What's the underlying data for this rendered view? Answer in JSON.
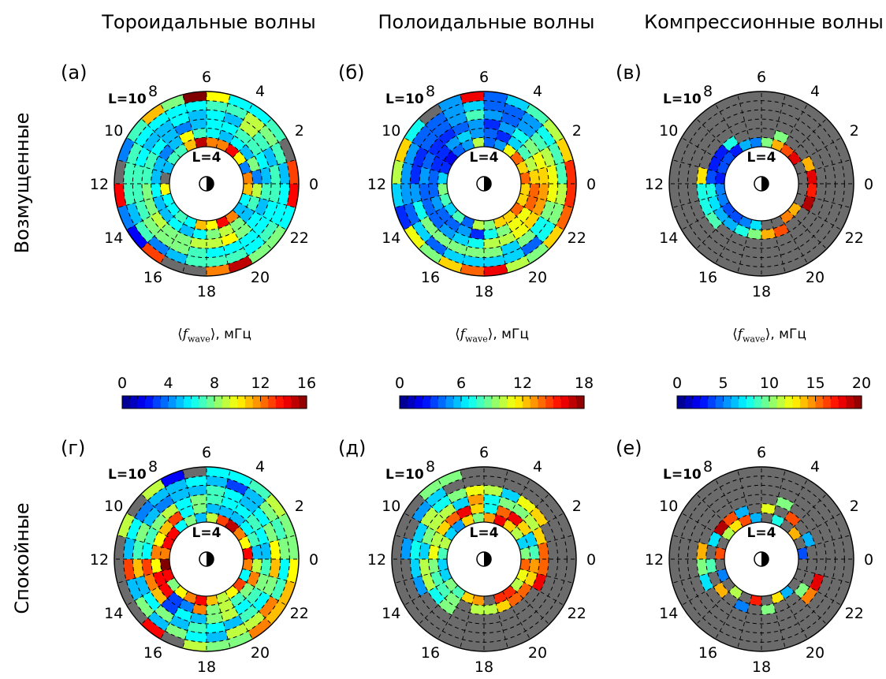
{
  "column_titles": [
    "Тороидальные волны",
    "Полоидальные волны",
    "Компрессионные волны"
  ],
  "row_titles": [
    "Возмущенные",
    "Спокойные"
  ],
  "colorbar_label": {
    "prefix": "⟨",
    "var": "f",
    "sub": "wave",
    "suffix": "⟩, мГц"
  },
  "colorbars": [
    {
      "ticks": [
        0,
        4,
        8,
        12,
        16
      ],
      "vmin": 0,
      "vmax": 16
    },
    {
      "ticks": [
        0,
        6,
        12,
        18
      ],
      "vmin": 0,
      "vmax": 18
    },
    {
      "ticks": [
        0,
        5,
        10,
        15,
        20
      ],
      "vmin": 0,
      "vmax": 20
    }
  ],
  "mlt_labels": [
    "0",
    "2",
    "4",
    "6",
    "8",
    "10",
    "12",
    "14",
    "16",
    "18",
    "20",
    "22"
  ],
  "l_outer_label": "L=10",
  "l_inner_label": "L=4",
  "colors": {
    "no_data": "#6b6b6b",
    "colormap": "jet"
  },
  "chart_data": [
    {
      "type": "heatmap",
      "panel": "(а)",
      "projection": "polar",
      "r_axis": "L",
      "r_range": [
        4,
        10
      ],
      "theta_axis": "MLT (hours)",
      "vmax": 16,
      "grid": "L=4..10 x 24 MLT bins (values read as f, mГц)",
      "values": [
        [
          12,
          4,
          10,
          14,
          12,
          12,
          15,
          11,
          7,
          7,
          5,
          null,
          10,
          6,
          6,
          7,
          6,
          11,
          10,
          14,
          12,
          5,
          6,
          11
        ],
        [
          4,
          8,
          5,
          6,
          5,
          6,
          7,
          10,
          5,
          4,
          5,
          5,
          6,
          5,
          5,
          6,
          5,
          6,
          8,
          9,
          8,
          5,
          7,
          9
        ],
        [
          5,
          6,
          7,
          7,
          6,
          6,
          5,
          4,
          5,
          6,
          7,
          7,
          8,
          8,
          9,
          8,
          8,
          9,
          9,
          10,
          8,
          6,
          5,
          7
        ],
        [
          7,
          5,
          7,
          9,
          5,
          6,
          5,
          6,
          5,
          5,
          6,
          7,
          7,
          7,
          8,
          8,
          8,
          7,
          6,
          6,
          6,
          6,
          6,
          7
        ],
        [
          5,
          7,
          8,
          9,
          7,
          7,
          6,
          6,
          6,
          6,
          7,
          7,
          7,
          5,
          7,
          4,
          5,
          7,
          7,
          7,
          6,
          7,
          6,
          6
        ],
        [
          13,
          null,
          7,
          6,
          6,
          10,
          16,
          8,
          11,
          7,
          4,
          null,
          14,
          4,
          2,
          13,
          null,
          null,
          12,
          15,
          8,
          8,
          6,
          14
        ]
      ]
    },
    {
      "type": "heatmap",
      "panel": "(б)",
      "projection": "polar",
      "r_axis": "L",
      "r_range": [
        4,
        10
      ],
      "theta_axis": "MLT (hours)",
      "vmax": 18,
      "grid": "L=4..10 x 24 MLT bins",
      "values": [
        [
          14,
          12,
          14,
          11,
          5,
          4,
          10,
          5,
          4,
          2,
          3,
          6,
          9,
          8,
          6,
          8,
          4,
          10,
          9,
          12,
          12,
          14,
          12,
          12
        ],
        [
          12,
          10,
          8,
          6,
          3,
          4,
          5,
          6,
          5,
          3,
          3,
          4,
          4,
          5,
          4,
          4,
          5,
          3,
          7,
          9,
          11,
          11,
          14,
          14
        ],
        [
          12,
          11,
          9,
          7,
          5,
          3,
          5,
          4,
          3,
          3,
          4,
          5,
          4,
          4,
          4,
          5,
          6,
          7,
          10,
          10,
          11,
          12,
          13,
          13
        ],
        [
          11,
          10,
          8,
          5,
          4,
          5,
          8,
          5,
          4,
          4,
          3,
          3,
          5,
          7,
          9,
          9,
          9,
          9,
          9,
          6,
          9,
          7,
          9,
          11
        ],
        [
          8,
          8,
          7,
          5,
          4,
          4,
          6,
          5,
          4,
          4,
          5,
          5,
          5,
          4,
          6,
          4,
          6,
          6,
          6,
          6,
          4,
          7,
          9,
          10
        ],
        [
          15,
          12,
          10,
          8,
          6,
          4,
          16,
          5,
          null,
          7,
          12,
          10,
          6,
          3,
          11,
          9,
          12,
          14,
          16,
          10,
          9,
          12,
          14,
          15
        ]
      ]
    },
    {
      "type": "heatmap",
      "panel": "(в)",
      "projection": "polar",
      "r_axis": "L",
      "r_range": [
        4,
        10
      ],
      "theta_axis": "MLT (hours)",
      "vmax": 20,
      "grid": "L=4..10 x 24 MLT bins",
      "values": [
        [
          null,
          null,
          18,
          16,
          14,
          10,
          5,
          6,
          3,
          4,
          4,
          3,
          5,
          5,
          4,
          4,
          5,
          7,
          null,
          null,
          15,
          14,
          null,
          null
        ],
        [
          18,
          14,
          null,
          null,
          10,
          null,
          null,
          null,
          8,
          3,
          3,
          4,
          8,
          7,
          6,
          6,
          8,
          10,
          14,
          16,
          null,
          null,
          19,
          17
        ],
        [
          null,
          null,
          null,
          null,
          null,
          null,
          null,
          null,
          null,
          null,
          null,
          13,
          8,
          8,
          9,
          null,
          null,
          null,
          null,
          null,
          null,
          null,
          null,
          null
        ],
        [
          null,
          null,
          null,
          null,
          null,
          null,
          null,
          null,
          null,
          null,
          null,
          null,
          null,
          null,
          null,
          null,
          null,
          null,
          null,
          null,
          null,
          null,
          null,
          null
        ],
        [
          null,
          null,
          null,
          null,
          null,
          null,
          null,
          null,
          null,
          null,
          null,
          null,
          null,
          null,
          null,
          null,
          null,
          null,
          null,
          null,
          null,
          null,
          null,
          null
        ],
        [
          null,
          null,
          null,
          null,
          null,
          null,
          null,
          null,
          null,
          null,
          null,
          null,
          null,
          null,
          null,
          null,
          null,
          null,
          null,
          null,
          null,
          null,
          null,
          null
        ]
      ]
    },
    {
      "type": "heatmap",
      "panel": "(г)",
      "projection": "polar",
      "r_axis": "L",
      "r_range": [
        4,
        10
      ],
      "theta_axis": "MLT (hours)",
      "vmax": 16,
      "grid": "L=4..10 x 24 MLT bins",
      "values": [
        [
          14,
          10,
          12,
          15,
          13,
          9,
          5,
          8,
          6,
          14,
          14,
          12,
          16,
          14,
          8,
          10,
          12,
          14,
          11,
          9,
          10,
          13,
          6,
          12
        ],
        [
          5,
          7,
          6,
          5,
          5,
          5,
          8,
          6,
          13,
          11,
          10,
          12,
          10,
          14,
          14,
          3,
          4,
          12,
          8,
          9,
          7,
          8,
          12,
          9
        ],
        [
          5,
          6,
          7,
          6,
          6,
          7,
          8,
          6,
          9,
          8,
          7,
          6,
          13,
          12,
          11,
          3,
          6,
          5,
          8,
          9,
          6,
          7,
          8,
          7
        ],
        [
          10,
          8,
          6,
          5,
          6,
          7,
          5,
          5,
          4,
          5,
          8,
          7,
          11,
          5,
          6,
          8,
          5,
          7,
          6,
          5,
          7,
          6,
          8,
          11
        ],
        [
          8,
          7,
          8,
          5,
          3,
          5,
          6,
          5,
          5,
          4,
          6,
          5,
          13,
          5,
          8,
          5,
          8,
          6,
          5,
          9,
          9,
          12,
          7,
          6
        ],
        [
          8,
          8,
          9,
          7,
          6,
          6,
          null,
          2,
          9,
          null,
          9,
          null,
          null,
          null,
          null,
          14,
          null,
          9,
          8,
          8,
          12,
          11,
          11,
          10
        ]
      ]
    },
    {
      "type": "heatmap",
      "panel": "(д)",
      "projection": "polar",
      "r_axis": "L",
      "r_range": [
        4,
        10
      ],
      "theta_axis": "MLT (hours)",
      "vmax": 18,
      "grid": "L=4..10 x 24 MLT bins",
      "values": [
        [
          9,
          6,
          10,
          12,
          16,
          13,
          9,
          12,
          5,
          6,
          10,
          8,
          6,
          6,
          9,
          8,
          12,
          13,
          null,
          15,
          15,
          10,
          11,
          14
        ],
        [
          8,
          6,
          12,
          16,
          14,
          7,
          12,
          16,
          14,
          12,
          10,
          11,
          9,
          8,
          8,
          9,
          null,
          10,
          10,
          12,
          14,
          14,
          12,
          13
        ],
        [
          14,
          12,
          10,
          9,
          9,
          7,
          13,
          6,
          10,
          10,
          9,
          6,
          10,
          10,
          7,
          9,
          null,
          null,
          null,
          null,
          null,
          null,
          16,
          14
        ],
        [
          null,
          null,
          12,
          11,
          6,
          10,
          11,
          9,
          7,
          10,
          6,
          7,
          6,
          5,
          null,
          null,
          null,
          null,
          null,
          null,
          null,
          null,
          null,
          null
        ],
        [
          null,
          null,
          null,
          null,
          null,
          null,
          null,
          null,
          6,
          5,
          null,
          5,
          null,
          null,
          null,
          null,
          null,
          null,
          null,
          null,
          null,
          null,
          null,
          null
        ],
        [
          null,
          null,
          null,
          null,
          null,
          null,
          null,
          9,
          9,
          null,
          null,
          null,
          null,
          null,
          null,
          null,
          null,
          null,
          null,
          null,
          null,
          null,
          null,
          null
        ]
      ]
    },
    {
      "type": "heatmap",
      "panel": "(е)",
      "projection": "polar",
      "r_axis": "L",
      "r_range": [
        4,
        10
      ],
      "theta_axis": "MLT (hours)",
      "vmax": 20,
      "grid": "L=4..10 x 24 MLT bins",
      "values": [
        [
          4,
          null,
          14,
          null,
          8,
          null,
          6,
          16,
          13,
          11,
          null,
          16,
          null,
          5,
          null,
          11,
          null,
          17,
          null,
          13,
          6,
          null,
          null,
          null
        ],
        [
          null,
          6,
          null,
          16,
          null,
          12,
          null,
          6,
          16,
          19,
          7,
          null,
          9,
          null,
          14,
          null,
          5,
          null,
          10,
          null,
          null,
          10,
          null,
          null
        ],
        [
          null,
          null,
          null,
          null,
          10,
          null,
          null,
          null,
          null,
          null,
          null,
          14,
          10,
          7,
          null,
          null,
          null,
          null,
          null,
          null,
          null,
          15,
          18,
          null
        ],
        [
          null,
          null,
          null,
          null,
          null,
          null,
          null,
          null,
          null,
          null,
          null,
          null,
          null,
          null,
          null,
          null,
          null,
          null,
          null,
          null,
          null,
          null,
          null,
          null
        ],
        [
          null,
          null,
          null,
          null,
          null,
          null,
          null,
          null,
          null,
          null,
          null,
          null,
          null,
          null,
          null,
          null,
          null,
          null,
          null,
          null,
          null,
          null,
          null,
          null
        ],
        [
          null,
          null,
          null,
          null,
          null,
          null,
          null,
          null,
          null,
          null,
          null,
          null,
          null,
          null,
          null,
          null,
          null,
          null,
          null,
          null,
          null,
          null,
          null,
          null
        ]
      ]
    }
  ]
}
